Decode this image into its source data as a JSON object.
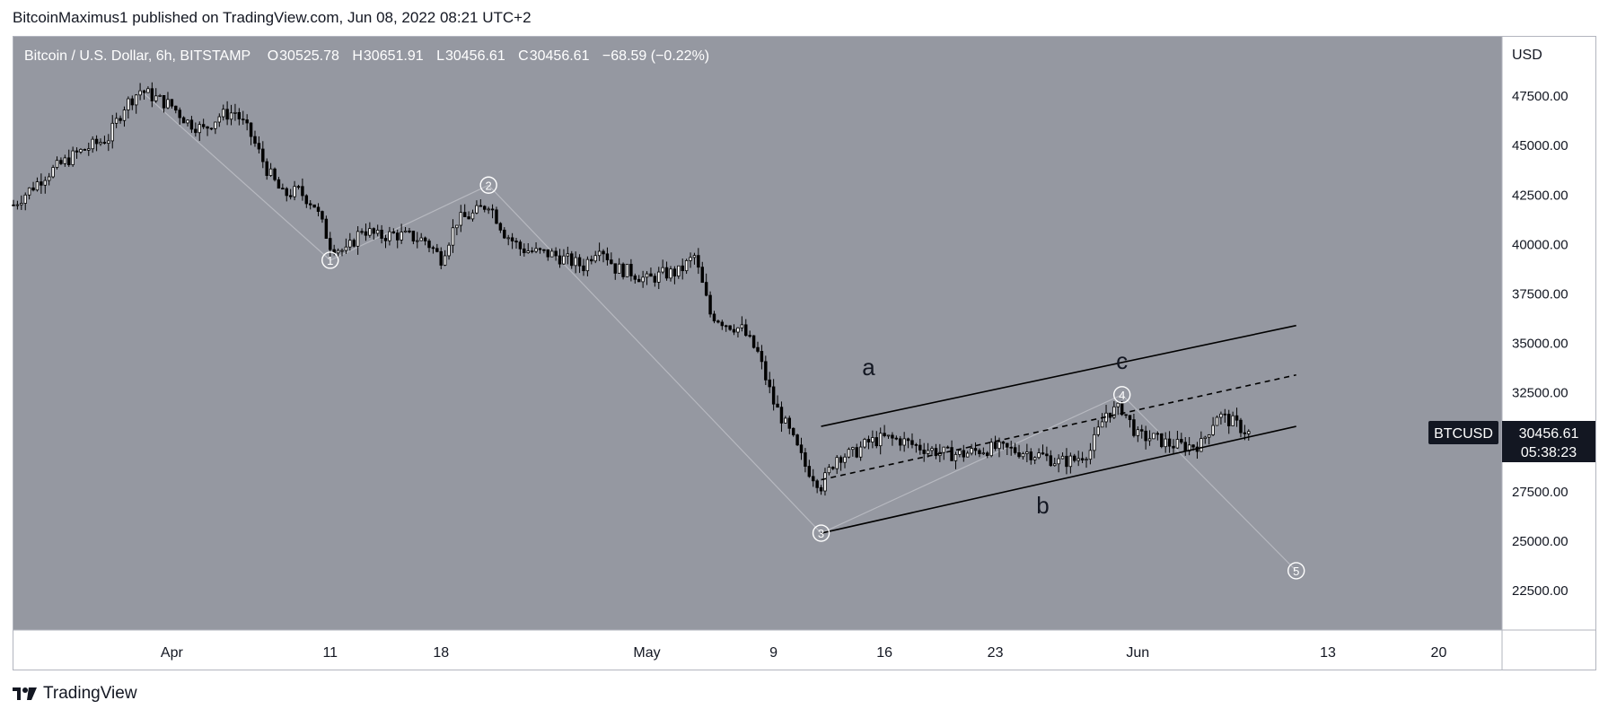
{
  "header": {
    "published": "BitcoinMaximus1 published on TradingView.com, Jun 08, 2022 08:21 UTC+2"
  },
  "legend": {
    "symbol": "Bitcoin / U.S. Dollar, 6h, BITSTAMP",
    "o_label": "O",
    "o": "30525.78",
    "h_label": "H",
    "h": "30651.91",
    "l_label": "L",
    "l": "30456.61",
    "c_label": "C",
    "c": "30456.61",
    "change": "−68.59 (−0.22%)"
  },
  "price_tag": {
    "ticker": "BTCUSD",
    "price": "30456.61",
    "countdown": "05:38:23"
  },
  "footer": {
    "brand": "TradingView",
    "logo_icon": "tradingview-logo-icon"
  },
  "colors": {
    "background": "#9598a1",
    "candle": "#000000",
    "wave_line": "#b7b9c0",
    "label": "#ffffff",
    "tag_bg": "#131722"
  },
  "chart_data": {
    "type": "candlestick",
    "currency": "USD",
    "ylim": [
      20500,
      50500
    ],
    "y_ticks": [
      "47500.00",
      "45000.00",
      "42500.00",
      "40000.00",
      "37500.00",
      "35000.00",
      "32500.00",
      "30000.00",
      "27500.00",
      "25000.00",
      "22500.00"
    ],
    "y_tick_values": [
      47500,
      45000,
      42500,
      40000,
      37500,
      35000,
      32500,
      30000,
      27500,
      25000,
      22500
    ],
    "xlim": [
      "2022-03-22",
      "2022-06-24"
    ],
    "x_ticks": [
      "Apr",
      "11",
      "18",
      "May",
      "9",
      "16",
      "23",
      "Jun",
      "13",
      "20"
    ],
    "x_tick_dates": [
      "2022-04-01",
      "2022-04-11",
      "2022-04-18",
      "2022-05-01",
      "2022-05-09",
      "2022-05-16",
      "2022-05-23",
      "2022-06-01",
      "2022-06-13",
      "2022-06-20"
    ],
    "price_path": [
      [
        "2022-03-22",
        42000
      ],
      [
        "2022-03-24",
        43500
      ],
      [
        "2022-03-26",
        44600
      ],
      [
        "2022-03-28",
        45400
      ],
      [
        "2022-03-29",
        47000
      ],
      [
        "2022-03-30",
        47800
      ],
      [
        "2022-04-01",
        47000
      ],
      [
        "2022-04-02",
        46200
      ],
      [
        "2022-04-03",
        45800
      ],
      [
        "2022-04-04",
        46500
      ],
      [
        "2022-04-05",
        46700
      ],
      [
        "2022-04-06",
        45500
      ],
      [
        "2022-04-07",
        43800
      ],
      [
        "2022-04-08",
        42500
      ],
      [
        "2022-04-09",
        42700
      ],
      [
        "2022-04-10",
        42000
      ],
      [
        "2022-04-11",
        40000
      ],
      [
        "2022-04-12",
        39600
      ],
      [
        "2022-04-13",
        40800
      ],
      [
        "2022-04-14",
        40400
      ],
      [
        "2022-04-15",
        40500
      ],
      [
        "2022-04-16",
        40400
      ],
      [
        "2022-04-17",
        40200
      ],
      [
        "2022-04-18",
        39300
      ],
      [
        "2022-04-19",
        41200
      ],
      [
        "2022-04-20",
        41500
      ],
      [
        "2022-04-21",
        42100
      ],
      [
        "2022-04-22",
        40600
      ],
      [
        "2022-04-23",
        39800
      ],
      [
        "2022-04-24",
        39600
      ],
      [
        "2022-04-25",
        39500
      ],
      [
        "2022-04-26",
        39200
      ],
      [
        "2022-04-27",
        38900
      ],
      [
        "2022-04-28",
        40000
      ],
      [
        "2022-04-29",
        38800
      ],
      [
        "2022-04-30",
        38600
      ],
      [
        "2022-05-01",
        38200
      ],
      [
        "2022-05-02",
        38500
      ],
      [
        "2022-05-03",
        38600
      ],
      [
        "2022-05-04",
        39400
      ],
      [
        "2022-05-05",
        36500
      ],
      [
        "2022-05-06",
        36000
      ],
      [
        "2022-05-07",
        35700
      ],
      [
        "2022-05-08",
        34500
      ],
      [
        "2022-05-09",
        32000
      ],
      [
        "2022-05-10",
        30500
      ],
      [
        "2022-05-11",
        28800
      ],
      [
        "2022-05-12",
        27800
      ],
      [
        "2022-05-13",
        29300
      ],
      [
        "2022-05-14",
        29400
      ],
      [
        "2022-05-15",
        30000
      ],
      [
        "2022-05-16",
        30200
      ],
      [
        "2022-05-17",
        30100
      ],
      [
        "2022-05-18",
        29800
      ],
      [
        "2022-05-19",
        29600
      ],
      [
        "2022-05-20",
        29400
      ],
      [
        "2022-05-21",
        29400
      ],
      [
        "2022-05-22",
        29600
      ],
      [
        "2022-05-23",
        29700
      ],
      [
        "2022-05-24",
        29600
      ],
      [
        "2022-05-25",
        29500
      ],
      [
        "2022-05-26",
        29300
      ],
      [
        "2022-05-27",
        29000
      ],
      [
        "2022-05-28",
        29100
      ],
      [
        "2022-05-29",
        29600
      ],
      [
        "2022-05-30",
        31500
      ],
      [
        "2022-05-31",
        31700
      ],
      [
        "2022-06-01",
        30300
      ],
      [
        "2022-06-02",
        30200
      ],
      [
        "2022-06-03",
        29900
      ],
      [
        "2022-06-04",
        29800
      ],
      [
        "2022-06-05",
        29900
      ],
      [
        "2022-06-06",
        31400
      ],
      [
        "2022-06-07",
        31000
      ],
      [
        "2022-06-08",
        30456
      ]
    ],
    "candles_approx_range": [
      [
        "2022-03-22",
        "2022-06-08"
      ]
    ],
    "wave_labels": [
      {
        "label": "1",
        "date": "2022-04-11",
        "price": 39200
      },
      {
        "label": "2",
        "date": "2022-04-21",
        "price": 43000
      },
      {
        "label": "3",
        "date": "2022-05-12",
        "price": 25400
      },
      {
        "label": "4",
        "date": "2022-05-31",
        "price": 32400
      },
      {
        "label": "5",
        "date": "2022-06-11",
        "price": 23500
      }
    ],
    "wave_path": [
      [
        "2022-03-30",
        47800
      ],
      [
        "2022-04-11",
        39200
      ],
      [
        "2022-04-21",
        43000
      ],
      [
        "2022-05-12",
        25400
      ],
      [
        "2022-05-31",
        32400
      ],
      [
        "2022-06-11",
        23500
      ]
    ],
    "abc_labels": [
      {
        "label": "a",
        "date": "2022-05-15",
        "price": 33400
      },
      {
        "label": "b",
        "date": "2022-05-26",
        "price": 26400
      },
      {
        "label": "c",
        "date": "2022-05-31",
        "price": 33700
      }
    ],
    "channel": {
      "upper": [
        [
          "2022-05-12",
          30800
        ],
        [
          "2022-06-11",
          35900
        ]
      ],
      "middle": [
        [
          "2022-05-12",
          28100
        ],
        [
          "2022-06-11",
          33400
        ]
      ],
      "lower": [
        [
          "2022-05-12",
          25400
        ],
        [
          "2022-06-11",
          30800
        ]
      ]
    }
  }
}
